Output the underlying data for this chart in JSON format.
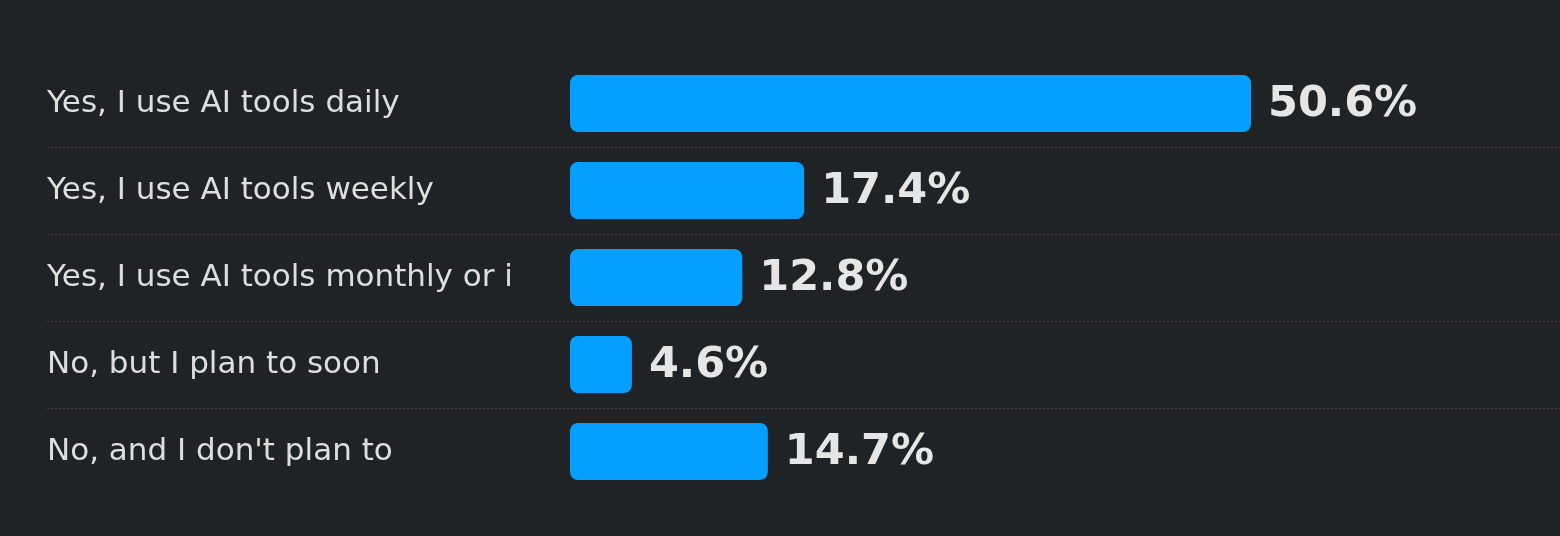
{
  "chart_data": {
    "type": "bar",
    "orientation": "horizontal",
    "categories": [
      "Yes, I use AI tools daily",
      "Yes, I use AI tools weekly",
      "Yes, I use AI tools monthly or i",
      "No, but I plan to soon",
      "No, and I don't plan to"
    ],
    "values": [
      50.6,
      17.4,
      12.8,
      4.6,
      14.7
    ],
    "color": "#05a0ff",
    "value_labels": [
      "50.6%",
      "17.4%",
      "12.8%",
      "4.6%",
      "14.7%"
    ],
    "grid": "y",
    "legend": false
  }
}
